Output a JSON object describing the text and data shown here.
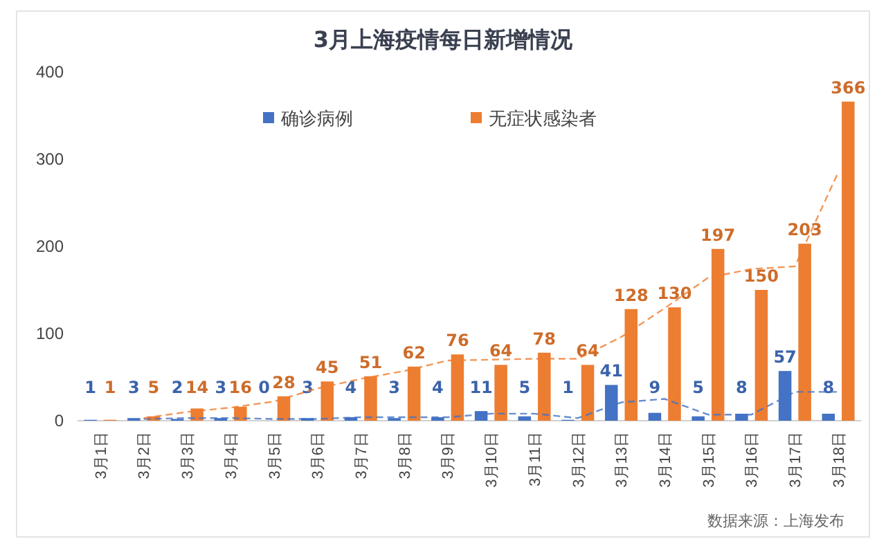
{
  "chart_data": {
    "type": "bar",
    "title": "3月上海疫情每日新增情况",
    "categories": [
      "3月1日",
      "3月2日",
      "3月3日",
      "3月4日",
      "3月5日",
      "3月6日",
      "3月7日",
      "3月8日",
      "3月9日",
      "3月10日",
      "3月11日",
      "3月12日",
      "3月13日",
      "3月14日",
      "3月15日",
      "3月16日",
      "3月17日",
      "3月18日"
    ],
    "series": [
      {
        "name": "确诊病例",
        "color": "#4472c4",
        "values": [
          1,
          3,
          2,
          3,
          0,
          3,
          4,
          3,
          4,
          11,
          5,
          1,
          41,
          9,
          5,
          8,
          57,
          8
        ],
        "value_labels": [
          "1",
          "3",
          "2",
          "3",
          "0",
          "3",
          "4",
          "3",
          "4",
          "11",
          "5",
          "1",
          "41",
          "9",
          "5",
          "8",
          "57",
          "8"
        ]
      },
      {
        "name": "无症状感染者",
        "color": "#ed7d31",
        "values": [
          1,
          5,
          14,
          16,
          28,
          45,
          51,
          62,
          76,
          64,
          78,
          64,
          128,
          130,
          197,
          150,
          203,
          366
        ],
        "value_labels": [
          "1",
          "5",
          "14",
          "16",
          "28",
          "45",
          "51",
          "62",
          "76",
          "64",
          "78",
          "64",
          "128",
          "130",
          "197",
          "150",
          "203",
          "366"
        ]
      },
      {
        "type": "line",
        "color": "#4472c4",
        "line_style": "dashed",
        "values": [
          null,
          2,
          3,
          3,
          2,
          2,
          4,
          4,
          4,
          8,
          8,
          3,
          21,
          25,
          7,
          7,
          33,
          33
        ]
      },
      {
        "type": "line",
        "color": "#ed7d31",
        "line_style": "dashed",
        "values": [
          null,
          3,
          10,
          15,
          22,
          37,
          48,
          57,
          69,
          70,
          71,
          71,
          96,
          129,
          164,
          174,
          177,
          285
        ]
      }
    ],
    "ylim": [
      0,
      400
    ],
    "yticks": [
      0,
      100,
      200,
      300,
      400
    ],
    "grid": false,
    "legend": "top",
    "annotations": [
      "数据来源：上海发布"
    ]
  }
}
